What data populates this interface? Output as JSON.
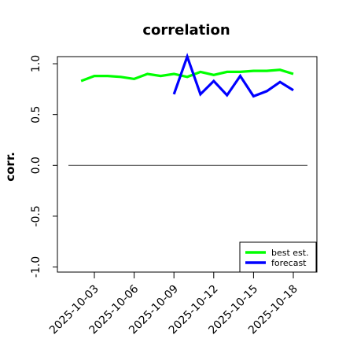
{
  "chart_data": {
    "type": "line",
    "title": "correlation",
    "xlabel": "",
    "ylabel": "corr.",
    "ylim": [
      -1.05,
      1.07
    ],
    "y_ticks": [
      -1.0,
      -0.5,
      0.0,
      0.5,
      1.0
    ],
    "y_tick_labels": [
      "-1.0",
      "-0.5",
      "0.0",
      "0.5",
      "1.0"
    ],
    "x_ticks": [
      "2025-10-03",
      "2025-10-06",
      "2025-10-09",
      "2025-10-12",
      "2025-10-15",
      "2025-10-18"
    ],
    "x_tick_colors": [
      "#000000",
      "#000000",
      "#228b22",
      "#000000",
      "#000000",
      "#000000"
    ],
    "reference_line": {
      "y": 0.0,
      "color": "#555555"
    },
    "legend": {
      "position": "bottom-right"
    },
    "series": [
      {
        "name": "best est.",
        "color": "#00ff00",
        "x": [
          "2025-10-02",
          "2025-10-03",
          "2025-10-04",
          "2025-10-05",
          "2025-10-06",
          "2025-10-07",
          "2025-10-08",
          "2025-10-09",
          "2025-10-10",
          "2025-10-11",
          "2025-10-12",
          "2025-10-13",
          "2025-10-14",
          "2025-10-15",
          "2025-10-16",
          "2025-10-17",
          "2025-10-18"
        ],
        "values": [
          0.83,
          0.88,
          0.88,
          0.87,
          0.85,
          0.9,
          0.88,
          0.9,
          0.87,
          0.92,
          0.89,
          0.92,
          0.92,
          0.93,
          0.93,
          0.94,
          0.9
        ]
      },
      {
        "name": "forecast",
        "color": "#0000ff",
        "x": [
          "2025-10-09",
          "2025-10-10",
          "2025-10-11",
          "2025-10-12",
          "2025-10-13",
          "2025-10-14",
          "2025-10-15",
          "2025-10-16",
          "2025-10-17",
          "2025-10-18"
        ],
        "values": [
          0.7,
          1.07,
          0.7,
          0.83,
          0.69,
          0.88,
          0.68,
          0.73,
          0.82,
          0.74
        ]
      }
    ]
  }
}
